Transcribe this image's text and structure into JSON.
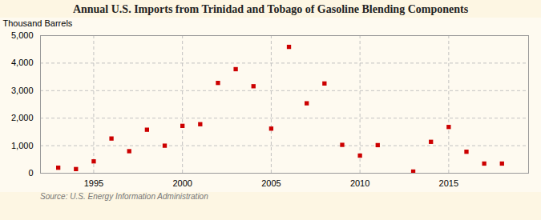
{
  "chart_data": {
    "type": "scatter",
    "title": "Annual U.S. Imports from Trinidad and Tobago of Gasoline Blending Components",
    "ylabel": "Thousand Barrels",
    "source": "Source: U.S. Energy Information Administration",
    "x": [
      1993,
      1994,
      1995,
      1996,
      1997,
      1998,
      1999,
      2000,
      2001,
      2002,
      2003,
      2004,
      2005,
      2006,
      2007,
      2008,
      2009,
      2010,
      2011,
      2013,
      2014,
      2015,
      2016,
      2017,
      2018
    ],
    "values": [
      200,
      150,
      430,
      1260,
      800,
      1580,
      1000,
      1720,
      1780,
      3280,
      3780,
      3160,
      1620,
      4590,
      2540,
      3260,
      1030,
      640,
      1020,
      60,
      1140,
      1680,
      780,
      350,
      350
    ],
    "color": "#cc0000",
    "marker": "square",
    "xlim": [
      1992,
      2019.5
    ],
    "xticks": [
      1995,
      2000,
      2005,
      2010,
      2015
    ],
    "ylim": [
      0,
      5000
    ],
    "yticks": [
      0,
      {
        "value": 1000,
        "label": "1,000"
      },
      {
        "value": 2000,
        "label": "2,000"
      },
      {
        "value": 3000,
        "label": "3,000"
      },
      {
        "value": 4000,
        "label": "4,000"
      },
      {
        "value": 5000,
        "label": "5,000"
      }
    ],
    "grid": true
  }
}
